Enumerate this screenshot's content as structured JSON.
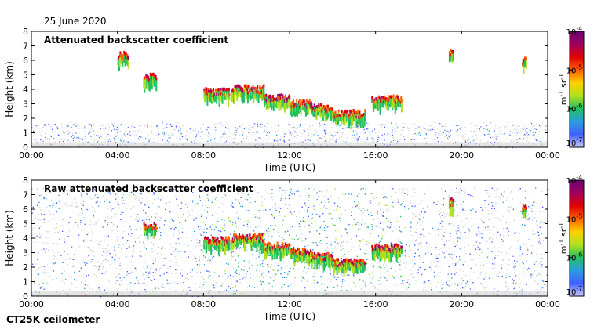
{
  "date": "25 June 2020",
  "instrument": "CT25K ceilometer",
  "colors": {
    "background": "#ffffff",
    "noise": "#d3d3d3",
    "scale": [
      "#c8c8ff",
      "#4060ff",
      "#2a9de0",
      "#20c060",
      "#b0e020",
      "#ffd000",
      "#ff6000",
      "#e00000",
      "#a00060",
      "#6a0070"
    ]
  },
  "chart_data": [
    {
      "type": "heatmap",
      "title": "Attenuated backscatter coefficient",
      "xlabel": "Time (UTC)",
      "ylabel": "Height (km)",
      "x_ticks": [
        "00:00",
        "04:00",
        "08:00",
        "12:00",
        "16:00",
        "20:00",
        "00:00"
      ],
      "y_ticks": [
        "0",
        "1",
        "2",
        "3",
        "4",
        "5",
        "6",
        "7",
        "8"
      ],
      "xlim_hours": [
        0,
        24
      ],
      "ylim_km": [
        0,
        8
      ],
      "colorbar": {
        "label_base": "m",
        "label_sup1": "-1",
        "label_mid": " sr",
        "label_sup2": "-1",
        "scale": "log",
        "ticks": [
          {
            "base": "10",
            "exp": "-4",
            "value": 0.0001
          },
          {
            "base": "10",
            "exp": "-5",
            "value": 1e-05
          },
          {
            "base": "10",
            "exp": "-6",
            "value": 1e-06
          },
          {
            "base": "10",
            "exp": "-7",
            "value": 1e-07
          }
        ]
      },
      "cloud_layers": [
        {
          "t_start": 8.0,
          "t_end": 9.2,
          "h": 3.8,
          "intensity": 0.8
        },
        {
          "t_start": 9.3,
          "t_end": 10.8,
          "h": 4.0,
          "intensity": 0.85
        },
        {
          "t_start": 10.8,
          "t_end": 12.0,
          "h": 3.4,
          "intensity": 0.9
        },
        {
          "t_start": 12.0,
          "t_end": 13.0,
          "h": 3.0,
          "intensity": 0.8
        },
        {
          "t_start": 13.0,
          "t_end": 14.0,
          "h": 2.7,
          "intensity": 0.85
        },
        {
          "t_start": 14.0,
          "t_end": 15.5,
          "h": 2.3,
          "intensity": 0.8
        },
        {
          "t_start": 15.8,
          "t_end": 17.2,
          "h": 3.3,
          "intensity": 0.85
        },
        {
          "t_start": 5.2,
          "t_end": 5.8,
          "h": 4.8,
          "intensity": 0.9
        },
        {
          "t_start": 4.0,
          "t_end": 4.5,
          "h": 6.3,
          "intensity": 0.95
        },
        {
          "t_start": 19.4,
          "t_end": 19.6,
          "h": 6.5,
          "intensity": 0.9
        },
        {
          "t_start": 22.8,
          "t_end": 23.0,
          "h": 6.0,
          "intensity": 0.7
        }
      ]
    },
    {
      "type": "heatmap",
      "title": "Raw attenuated backscatter coefficient",
      "xlabel": "Time (UTC)",
      "ylabel": "Height (km)",
      "x_ticks": [
        "00:00",
        "04:00",
        "08:00",
        "12:00",
        "16:00",
        "20:00",
        "00:00"
      ],
      "y_ticks": [
        "0",
        "1",
        "2",
        "3",
        "4",
        "5",
        "6",
        "7",
        "8"
      ],
      "xlim_hours": [
        0,
        24
      ],
      "ylim_km": [
        0,
        8
      ],
      "colorbar": {
        "label_base": "m",
        "label_sup1": "-1",
        "label_mid": " sr",
        "label_sup2": "-1",
        "scale": "log",
        "ticks": [
          {
            "base": "10",
            "exp": "-4",
            "value": 0.0001
          },
          {
            "base": "10",
            "exp": "-5",
            "value": 1e-05
          },
          {
            "base": "10",
            "exp": "-6",
            "value": 1e-06
          },
          {
            "base": "10",
            "exp": "-7",
            "value": 1e-07
          }
        ]
      },
      "cloud_layers": [
        {
          "t_start": 8.0,
          "t_end": 9.2,
          "h": 3.8,
          "intensity": 0.8
        },
        {
          "t_start": 9.3,
          "t_end": 10.8,
          "h": 4.0,
          "intensity": 0.85
        },
        {
          "t_start": 10.8,
          "t_end": 12.0,
          "h": 3.4,
          "intensity": 0.9
        },
        {
          "t_start": 12.0,
          "t_end": 13.0,
          "h": 3.0,
          "intensity": 0.8
        },
        {
          "t_start": 13.0,
          "t_end": 14.0,
          "h": 2.7,
          "intensity": 0.85
        },
        {
          "t_start": 14.0,
          "t_end": 15.5,
          "h": 2.3,
          "intensity": 0.8
        },
        {
          "t_start": 15.8,
          "t_end": 17.2,
          "h": 3.3,
          "intensity": 0.85
        },
        {
          "t_start": 5.2,
          "t_end": 5.8,
          "h": 4.8,
          "intensity": 0.9
        },
        {
          "t_start": 19.4,
          "t_end": 19.6,
          "h": 6.5,
          "intensity": 0.9
        },
        {
          "t_start": 22.8,
          "t_end": 23.0,
          "h": 6.0,
          "intensity": 0.7
        }
      ]
    }
  ]
}
